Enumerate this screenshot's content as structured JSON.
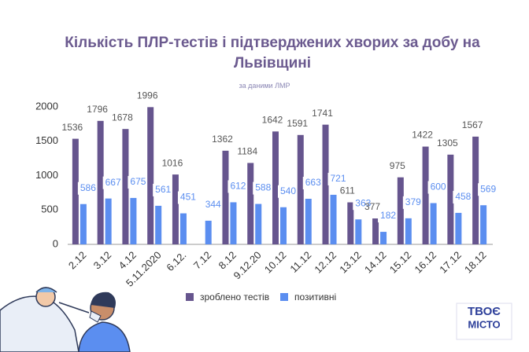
{
  "chart_data": {
    "type": "bar",
    "title": "Кількість ПЛР-тестів і підтверджених хворих за добу на Львівщині",
    "subtitle": "за даними ЛМР",
    "categories": [
      "2.12",
      "3.12",
      "4.12",
      "5.11.2020",
      "6.12.",
      "7.12",
      "8.12",
      "9.12.20",
      "10.12",
      "11.12",
      "12.12",
      "13.12",
      "14.12",
      "15.12",
      "16.12",
      "17.12",
      "18.12"
    ],
    "series": [
      {
        "name": "зроблено тестів",
        "color": "#66558e",
        "values": [
          1536,
          1796,
          1678,
          1996,
          1016,
          null,
          1362,
          1184,
          1642,
          1591,
          1741,
          611,
          377,
          975,
          1422,
          1305,
          1567
        ]
      },
      {
        "name": "позитивні",
        "color": "#5b8ef0",
        "values": [
          586,
          667,
          675,
          561,
          451,
          344,
          612,
          588,
          540,
          663,
          721,
          363,
          182,
          379,
          600,
          458,
          569
        ]
      }
    ],
    "ylim": [
      0,
      2000
    ],
    "yticks": [
      0,
      500,
      1000,
      1500,
      2000
    ],
    "grid": false
  },
  "logo": {
    "line1": "ТВОЄ",
    "line2": "МІСТО"
  }
}
